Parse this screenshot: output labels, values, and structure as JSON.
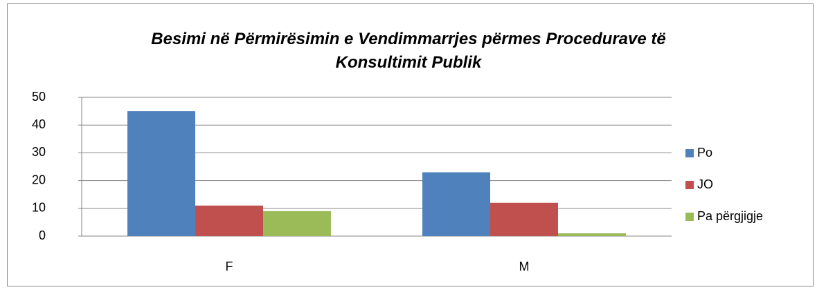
{
  "chart_data": {
    "type": "bar",
    "title": "Besimi në Përmirësimin e Vendimmarrjes përmes Procedurave të Konsultimit Publik",
    "categories": [
      "F",
      "M"
    ],
    "series": [
      {
        "name": "Po",
        "color": "#4f81bd",
        "values": [
          45,
          23
        ]
      },
      {
        "name": "JO",
        "color": "#c0504d",
        "values": [
          11,
          12
        ]
      },
      {
        "name": "Pa përgjigje",
        "color": "#9bbb59",
        "values": [
          9,
          1
        ]
      }
    ],
    "ylim": [
      0,
      50
    ],
    "yticks": [
      0,
      10,
      20,
      30,
      40,
      50
    ],
    "grid": true,
    "legend": "right"
  }
}
